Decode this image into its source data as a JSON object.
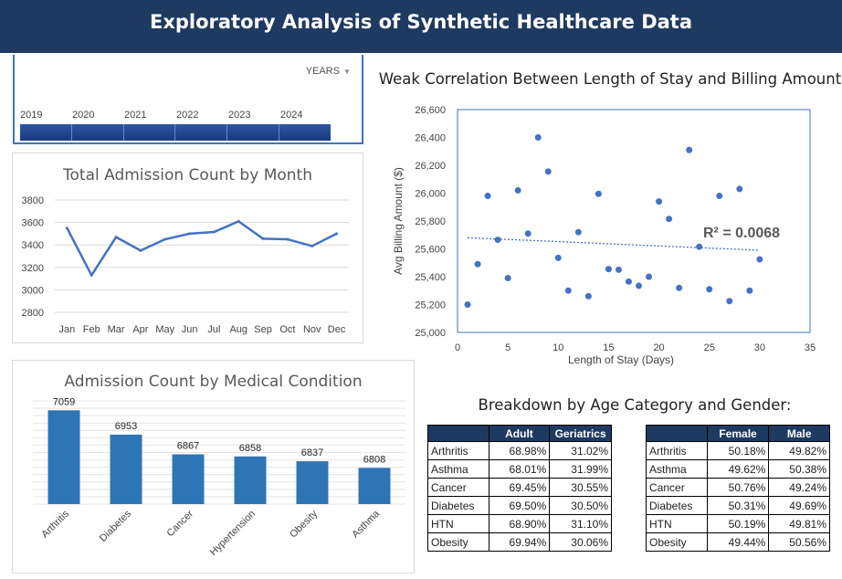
{
  "header": {
    "title": "Exploratory Analysis of Synthetic Healthcare Data",
    "bg_color": "#1f3a60"
  },
  "timeline": {
    "period_label": "YEARS",
    "years": [
      "2019",
      "2020",
      "2021",
      "2022",
      "2023",
      "2024"
    ],
    "selection_color": "#2f56a3"
  },
  "monthly_title": "Total Admission Count by Month",
  "condition_title": "Admission Count by Medical Condition",
  "scatter_title": "Weak Correlation Between Length of Stay and Billing Amount",
  "breakdown": {
    "title": "Breakdown by Age Category and Gender:",
    "age_table": {
      "headers": [
        "",
        "Adult",
        "Geriatrics"
      ],
      "rows": [
        [
          "Arthritis",
          "68.98%",
          "31.02%"
        ],
        [
          "Asthma",
          "68.01%",
          "31.99%"
        ],
        [
          "Cancer",
          "69.45%",
          "30.55%"
        ],
        [
          "Diabetes",
          "69.50%",
          "30.50%"
        ],
        [
          "HTN",
          "68.90%",
          "31.10%"
        ],
        [
          "Obesity",
          "69.94%",
          "30.06%"
        ]
      ]
    },
    "gender_table": {
      "headers": [
        "",
        "Female",
        "Male"
      ],
      "rows": [
        [
          "Arthritis",
          "50.18%",
          "49.82%"
        ],
        [
          "Asthma",
          "49.62%",
          "50.38%"
        ],
        [
          "Cancer",
          "50.76%",
          "49.24%"
        ],
        [
          "Diabetes",
          "50.31%",
          "49.69%"
        ],
        [
          "HTN",
          "50.19%",
          "49.81%"
        ],
        [
          "Obesity",
          "49.44%",
          "50.56%"
        ]
      ]
    }
  },
  "chart_data": [
    {
      "type": "line",
      "title": "Total Admission Count by Month",
      "categories": [
        "Jan",
        "Feb",
        "Mar",
        "Apr",
        "May",
        "Jun",
        "Jul",
        "Aug",
        "Sep",
        "Oct",
        "Nov",
        "Dec"
      ],
      "values": [
        3550,
        3130,
        3470,
        3350,
        3450,
        3500,
        3515,
        3610,
        3455,
        3450,
        3390,
        3500
      ],
      "ylim": [
        2800,
        3800
      ],
      "yticks": [
        "2800",
        "3000",
        "3200",
        "3400",
        "3600",
        "3800"
      ],
      "grid": true,
      "color": "#4472c4"
    },
    {
      "type": "bar",
      "title": "Admission Count by Medical Condition",
      "categories": [
        "Arthritis",
        "Diabetes",
        "Cancer",
        "Hypertension",
        "Obesity",
        "Asthma"
      ],
      "values": [
        7059,
        6953,
        6867,
        6858,
        6837,
        6808
      ],
      "value_labels": [
        "7059",
        "6953",
        "6867",
        "6858",
        "6837",
        "6808"
      ],
      "ylim": [
        6650,
        7100
      ],
      "grid": true,
      "color": "#2e75b6"
    },
    {
      "type": "scatter",
      "title": "Weak Correlation Between Length of Stay and Billing Amount",
      "xlabel": "Length of Stay (Days)",
      "ylabel": "Avg Billing Amount ($)",
      "xlim": [
        0,
        35
      ],
      "ylim": [
        25000,
        26600
      ],
      "xticks": [
        "0",
        "5",
        "10",
        "15",
        "20",
        "25",
        "30",
        "35"
      ],
      "yticks": [
        "25,000",
        "25,200",
        "25,400",
        "25,600",
        "25,800",
        "26,000",
        "26,200",
        "26,400",
        "26,600"
      ],
      "points": [
        [
          1,
          25200
        ],
        [
          2,
          25490
        ],
        [
          3,
          25980
        ],
        [
          4,
          25665
        ],
        [
          5,
          25390
        ],
        [
          6,
          26020
        ],
        [
          7,
          25710
        ],
        [
          8,
          26400
        ],
        [
          9,
          26155
        ],
        [
          10,
          25535
        ],
        [
          11,
          25300
        ],
        [
          12,
          25720
        ],
        [
          13,
          25260
        ],
        [
          14,
          25995
        ],
        [
          15,
          25455
        ],
        [
          16,
          25450
        ],
        [
          17,
          25365
        ],
        [
          18,
          25335
        ],
        [
          19,
          25400
        ],
        [
          20,
          25940
        ],
        [
          21,
          25815
        ],
        [
          22,
          25320
        ],
        [
          23,
          26310
        ],
        [
          24,
          25615
        ],
        [
          25,
          25310
        ],
        [
          26,
          25980
        ],
        [
          27,
          25225
        ],
        [
          28,
          26030
        ],
        [
          29,
          25300
        ],
        [
          30,
          25525
        ]
      ],
      "trendline": {
        "x": [
          1,
          30
        ],
        "y": [
          25680,
          25590
        ],
        "r2_label": "R² = 0.0068"
      },
      "grid": false,
      "color": "#4472c4"
    }
  ]
}
